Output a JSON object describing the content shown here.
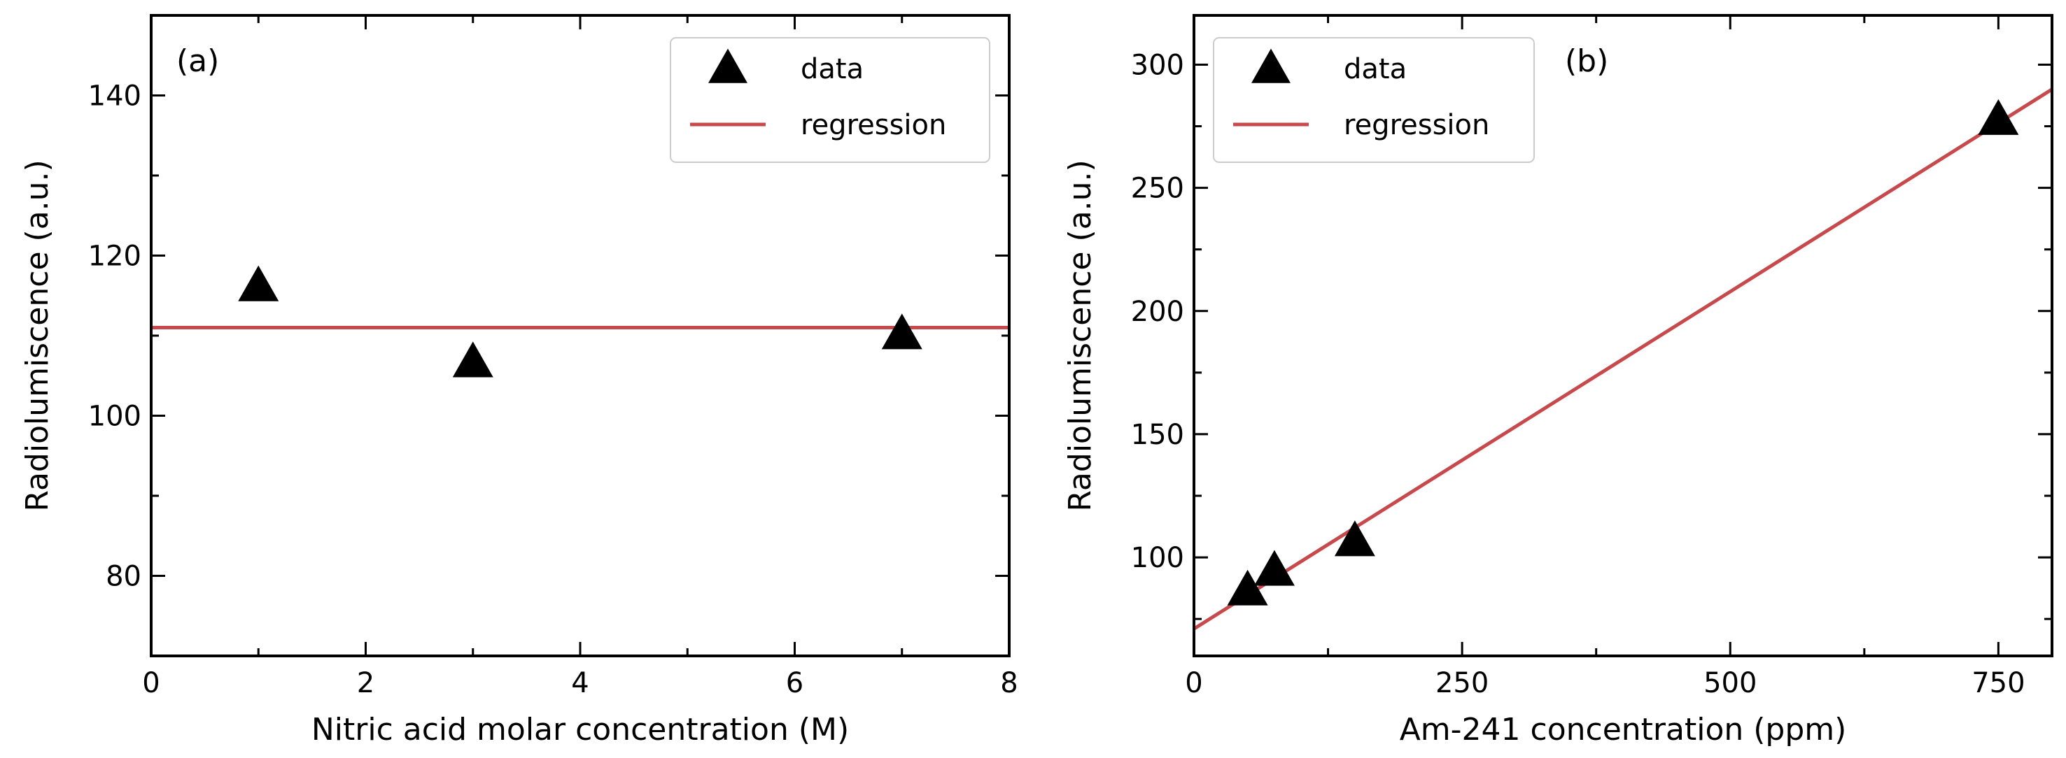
{
  "figure": {
    "background": "#ffffff",
    "colors": {
      "data": "#000000",
      "regression": "#c8494c",
      "axes": "#000000",
      "legend_border": "#cccccc"
    }
  },
  "chart_data": [
    {
      "type": "scatter",
      "panel_label": "(a)",
      "xlabel": "Nitric acid molar concentration (M)",
      "ylabel": "Radiolumiscence (a.u.)",
      "xlim": [
        0,
        8
      ],
      "ylim": [
        70,
        150
      ],
      "xticks": [
        0,
        2,
        4,
        6,
        8
      ],
      "yticks": [
        80,
        100,
        120,
        140
      ],
      "xtick_labels": [
        "0",
        "2",
        "4",
        "6",
        "8"
      ],
      "ytick_labels": [
        "80",
        "100",
        "120",
        "140"
      ],
      "x_minor_step": 1,
      "y_minor_step": 10,
      "grid": false,
      "legend": {
        "position": "top-right",
        "entries": [
          "data",
          "regression"
        ]
      },
      "series": [
        {
          "name": "data",
          "kind": "marker",
          "marker": "triangle",
          "x": [
            1,
            3,
            7
          ],
          "y": [
            116,
            106.5,
            110
          ]
        },
        {
          "name": "regression",
          "kind": "line",
          "x": [
            0,
            8
          ],
          "y": [
            111,
            111
          ]
        }
      ]
    },
    {
      "type": "scatter",
      "panel_label": "(b)",
      "xlabel": "Am-241 concentration (ppm)",
      "ylabel": "Radiolumiscence (a.u.)",
      "xlim": [
        0,
        800
      ],
      "ylim": [
        60,
        320
      ],
      "xticks": [
        0,
        250,
        500,
        750
      ],
      "yticks": [
        100,
        150,
        200,
        250,
        300
      ],
      "xtick_labels": [
        "0",
        "250",
        "500",
        "750"
      ],
      "ytick_labels": [
        "100",
        "150",
        "200",
        "250",
        "300"
      ],
      "x_minor_step": 125,
      "y_minor_step": 25,
      "grid": false,
      "legend": {
        "position": "top-left",
        "entries": [
          "data",
          "regression"
        ]
      },
      "series": [
        {
          "name": "data",
          "kind": "marker",
          "marker": "triangle",
          "x": [
            50,
            75,
            150,
            750
          ],
          "y": [
            86,
            94,
            106,
            277
          ]
        },
        {
          "name": "regression",
          "kind": "line",
          "x": [
            0,
            800
          ],
          "y": [
            71,
            290
          ]
        }
      ]
    }
  ]
}
